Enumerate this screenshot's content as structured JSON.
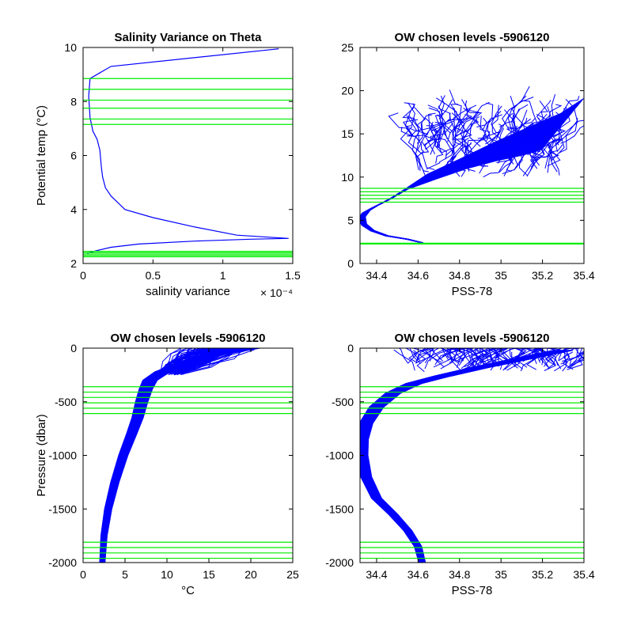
{
  "colors": {
    "profile": "#0000ff",
    "level": "#00ee00",
    "axis": "#000000"
  },
  "chart_data": [
    {
      "type": "line",
      "title": "Salinity Variance on Theta",
      "xlabel": "salinity variance",
      "ylabel": "Potential temp (°C)",
      "x_exponent": "× 10⁻⁴",
      "xlim": [
        0,
        1.5
      ],
      "ylim": [
        2,
        10
      ],
      "xticks": [
        0,
        0.5,
        1,
        1.5
      ],
      "xticklabels": [
        "0",
        "0.5",
        "1",
        "1.5"
      ],
      "yticks": [
        2,
        4,
        6,
        8,
        10
      ],
      "yticklabels": [
        "2",
        "4",
        "6",
        "8",
        "10"
      ],
      "series": [
        {
          "x": [
            0.03,
            0.1,
            0.2,
            0.4,
            0.8,
            1.2,
            1.47,
            1.1,
            0.8,
            0.5,
            0.3,
            0.2,
            0.16,
            0.14,
            0.13,
            0.12,
            0.1,
            0.07,
            0.05,
            0.04,
            0.05,
            0.2,
            1.4
          ],
          "y": [
            2.38,
            2.48,
            2.6,
            2.72,
            2.83,
            2.9,
            2.93,
            3.05,
            3.35,
            3.7,
            4.0,
            4.5,
            4.8,
            5.2,
            5.6,
            6.2,
            6.6,
            6.9,
            7.4,
            8.2,
            8.85,
            9.3,
            9.95
          ]
        }
      ],
      "hlines": [
        2.25,
        2.3,
        2.35,
        2.4,
        2.45,
        7.15,
        7.35,
        7.75,
        8.05,
        8.45,
        8.85
      ]
    },
    {
      "type": "line",
      "title": "OW chosen levels -5906120",
      "xlabel": "PSS-78",
      "ylabel": "",
      "xlim": [
        34.32,
        35.4
      ],
      "ylim": [
        0,
        25
      ],
      "xticks": [
        34.4,
        34.6,
        34.8,
        35,
        35.2,
        35.4
      ],
      "xticklabels": [
        "34.4",
        "34.6",
        "34.8",
        "35",
        "35.2",
        "35.4"
      ],
      "yticks": [
        0,
        5,
        10,
        15,
        20,
        25
      ],
      "yticklabels": [
        "0",
        "5",
        "10",
        "15",
        "20",
        "25"
      ],
      "series": [
        {
          "x": [
            34.62,
            34.55,
            34.45,
            34.38,
            34.34,
            34.33,
            34.35,
            34.4,
            34.45,
            34.5,
            34.6,
            34.75,
            34.9,
            35.05,
            35.2,
            35.3
          ],
          "y": [
            2.4,
            2.8,
            3.2,
            3.8,
            4.5,
            5.3,
            6.0,
            6.7,
            7.3,
            8.0,
            9.5,
            11.0,
            12.5,
            13.8,
            15.0,
            16.2
          ]
        }
      ],
      "hlines": [
        2.25,
        2.35,
        7.1,
        7.5,
        7.9,
        8.3,
        8.7
      ]
    },
    {
      "type": "line",
      "title": "OW chosen levels -5906120",
      "xlabel": "°C",
      "ylabel": "Pressure (dbar)",
      "xlim": [
        0,
        25
      ],
      "ylim": [
        -2000,
        0
      ],
      "xticks": [
        0,
        5,
        10,
        15,
        20,
        25
      ],
      "xticklabels": [
        "0",
        "5",
        "10",
        "15",
        "20",
        "25"
      ],
      "yticks": [
        -2000,
        -1500,
        -1000,
        -500,
        0
      ],
      "yticklabels": [
        "-2000",
        "-1500",
        "-1000",
        "-500",
        "0"
      ],
      "series": [
        {
          "x": [
            2.3,
            2.5,
            3.0,
            3.8,
            4.8,
            5.8,
            6.5,
            7.0,
            7.5,
            8.0,
            9.5,
            12.0,
            15.0,
            20.0
          ],
          "y": [
            -2000,
            -1750,
            -1500,
            -1250,
            -1000,
            -800,
            -650,
            -500,
            -380,
            -300,
            -220,
            -150,
            -70,
            0
          ]
        }
      ],
      "hlines": [
        -360,
        -410,
        -460,
        -510,
        -560,
        -610,
        -1810,
        -1860,
        -1910,
        -1960
      ]
    },
    {
      "type": "line",
      "title": "OW chosen levels -5906120",
      "xlabel": "PSS-78",
      "ylabel": "",
      "xlim": [
        34.32,
        35.4
      ],
      "ylim": [
        -2000,
        0
      ],
      "xticks": [
        34.4,
        34.6,
        34.8,
        35,
        35.2,
        35.4
      ],
      "xticklabels": [
        "34.4",
        "34.6",
        "34.8",
        "35",
        "35.2",
        "35.4"
      ],
      "yticks": [
        -2000,
        -1500,
        -1000,
        -500,
        0
      ],
      "yticklabels": [
        "-2000",
        "-1500",
        "-1000",
        "-500",
        "0"
      ],
      "series": [
        {
          "x": [
            34.62,
            34.6,
            34.55,
            34.48,
            34.4,
            34.35,
            34.33,
            34.33,
            34.35,
            34.4,
            34.48,
            34.58,
            34.72,
            34.9,
            35.1,
            35.3
          ],
          "y": [
            -2000,
            -1850,
            -1700,
            -1550,
            -1400,
            -1200,
            -1000,
            -850,
            -700,
            -550,
            -420,
            -330,
            -260,
            -180,
            -100,
            -20
          ]
        }
      ],
      "hlines": [
        -360,
        -410,
        -460,
        -510,
        -560,
        -610,
        -1810,
        -1860,
        -1910,
        -1960
      ]
    }
  ]
}
